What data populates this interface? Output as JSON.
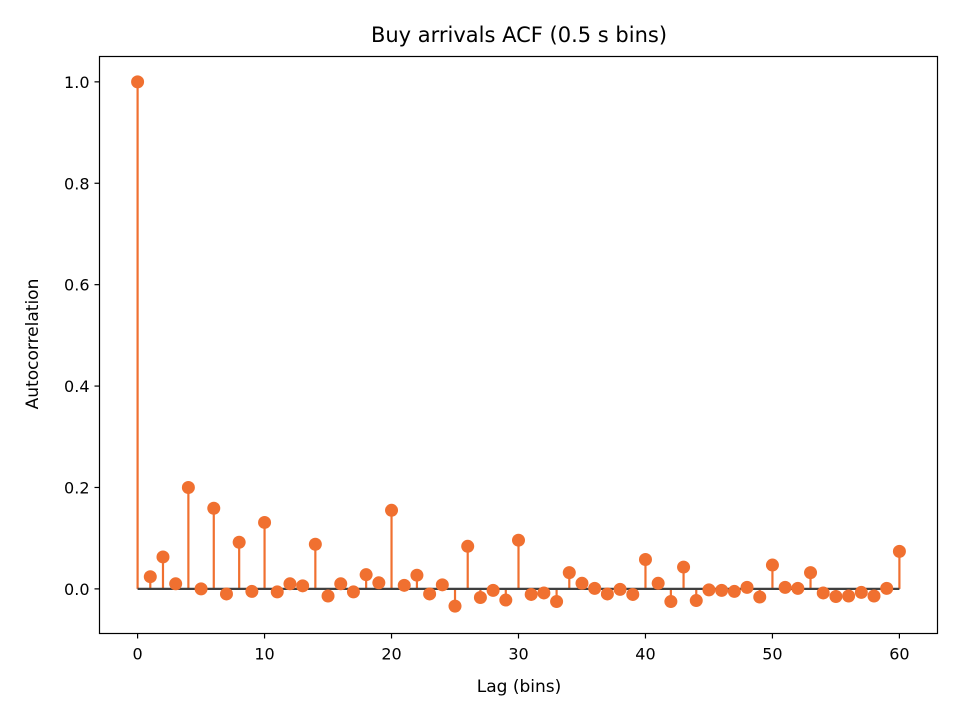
{
  "chart_data": {
    "type": "stem",
    "title": "Buy arrivals ACF (0.5 s bins)",
    "xlabel": "Lag (bins)",
    "ylabel": "Autocorrelation",
    "xlim": [
      -3,
      63
    ],
    "ylim": [
      -0.088,
      1.05
    ],
    "xticks": [
      0,
      10,
      20,
      30,
      40,
      50,
      60
    ],
    "xtick_labels": [
      "0",
      "10",
      "20",
      "30",
      "40",
      "50",
      "60"
    ],
    "yticks": [
      0.0,
      0.2,
      0.4,
      0.6,
      0.8,
      1.0
    ],
    "ytick_labels": [
      "0.0",
      "0.2",
      "0.4",
      "0.6",
      "0.8",
      "1.0"
    ],
    "grid": false,
    "color": "#f07030",
    "baseline_color": "#404040",
    "x": [
      0,
      1,
      2,
      3,
      4,
      5,
      6,
      7,
      8,
      9,
      10,
      11,
      12,
      13,
      14,
      15,
      16,
      17,
      18,
      19,
      20,
      21,
      22,
      23,
      24,
      25,
      26,
      27,
      28,
      29,
      30,
      31,
      32,
      33,
      34,
      35,
      36,
      37,
      38,
      39,
      40,
      41,
      42,
      43,
      44,
      45,
      46,
      47,
      48,
      49,
      50,
      51,
      52,
      53,
      54,
      55,
      56,
      57,
      58,
      59,
      60
    ],
    "values": [
      1.0,
      0.024,
      0.063,
      0.01,
      0.2,
      0.0,
      0.159,
      -0.01,
      0.092,
      -0.005,
      0.131,
      -0.006,
      0.01,
      0.006,
      0.088,
      -0.014,
      0.01,
      -0.006,
      0.028,
      0.012,
      0.155,
      0.007,
      0.027,
      -0.01,
      0.008,
      -0.034,
      0.084,
      -0.017,
      -0.003,
      -0.022,
      0.096,
      -0.011,
      -0.008,
      -0.025,
      0.032,
      0.011,
      0.001,
      -0.01,
      -0.001,
      -0.011,
      0.058,
      0.011,
      -0.025,
      0.043,
      -0.023,
      -0.002,
      -0.003,
      -0.005,
      0.003,
      -0.016,
      0.047,
      0.003,
      0.001,
      0.032,
      -0.008,
      -0.015,
      -0.014,
      -0.007,
      -0.014,
      0.001,
      0.074
    ]
  }
}
